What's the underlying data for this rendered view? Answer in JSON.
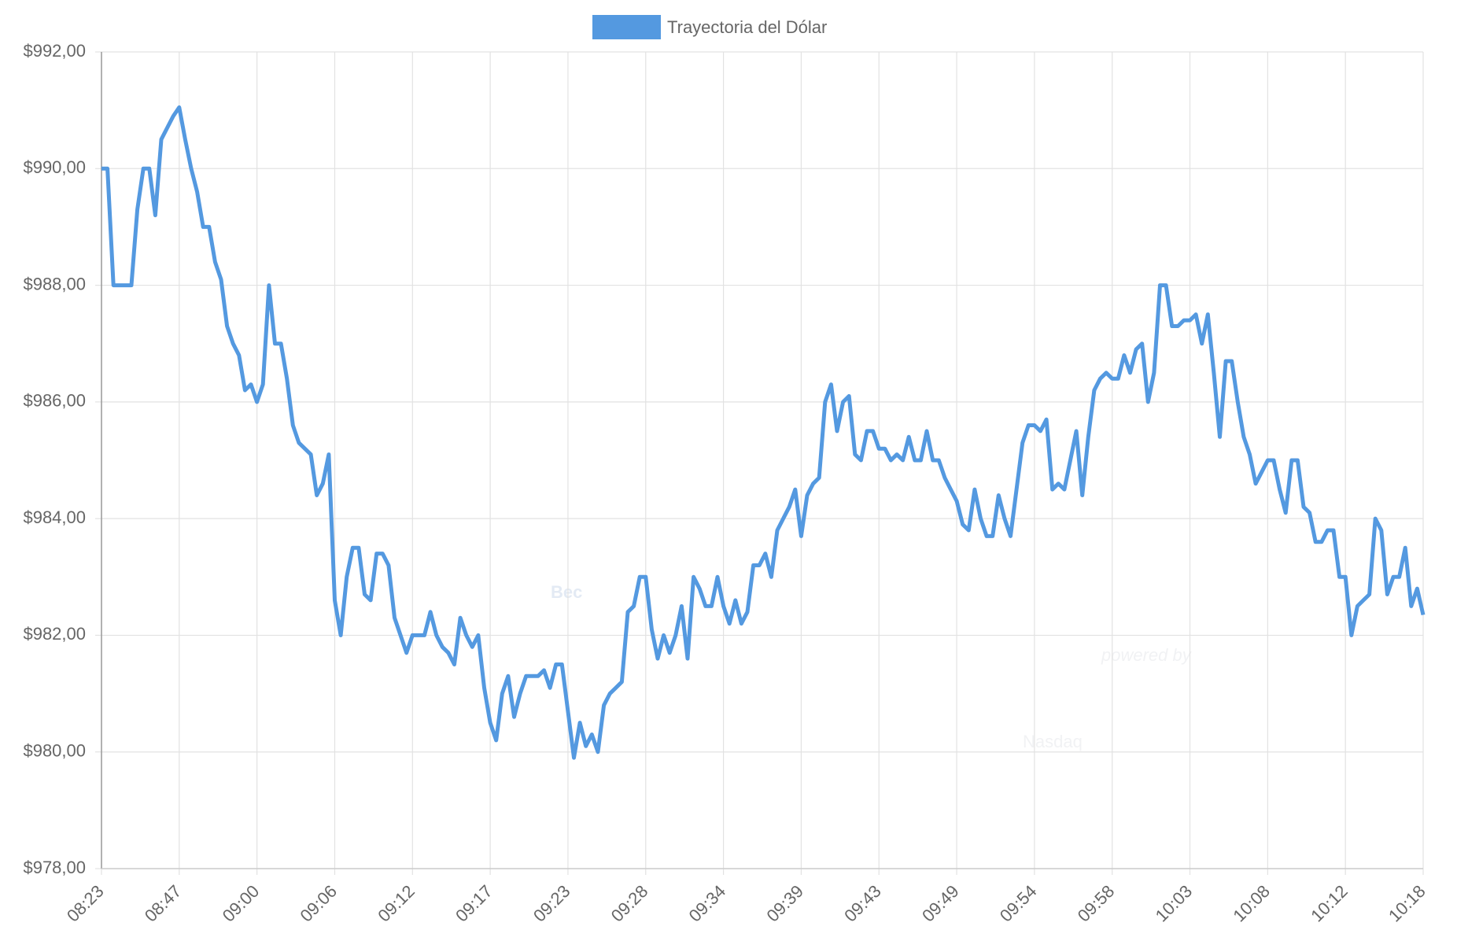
{
  "chart_data": {
    "type": "line",
    "watermark": {
      "brand": "Bec",
      "tagline": "powered by",
      "name": "Nasdaq"
    },
    "categories": [
      "08:23",
      null,
      null,
      null,
      null,
      null,
      null,
      null,
      null,
      null,
      null,
      null,
      null,
      "08:47",
      null,
      null,
      null,
      null,
      null,
      null,
      null,
      null,
      null,
      null,
      null,
      null,
      "09:00",
      null,
      null,
      null,
      null,
      null,
      null,
      null,
      null,
      null,
      null,
      null,
      null,
      "09:06",
      null,
      null,
      null,
      null,
      null,
      null,
      null,
      null,
      null,
      null,
      null,
      null,
      "09:12",
      null,
      null,
      null,
      null,
      null,
      null,
      null,
      null,
      null,
      null,
      null,
      null,
      "09:17",
      null,
      null,
      null,
      null,
      null,
      null,
      null,
      null,
      null,
      null,
      null,
      null,
      "09:23",
      null,
      null,
      null,
      null,
      null,
      null,
      null,
      null,
      null,
      null,
      null,
      null,
      "09:28",
      null,
      null,
      null,
      null,
      null,
      null,
      null,
      null,
      null,
      null,
      null,
      null,
      "09:34",
      null,
      null,
      null,
      null,
      null,
      null,
      null,
      null,
      null,
      null,
      null,
      null,
      "09:39",
      null,
      null,
      null,
      null,
      null,
      null,
      null,
      null,
      null,
      null,
      null,
      null,
      "09:43",
      null,
      null,
      null,
      null,
      null,
      null,
      null,
      null,
      null,
      null,
      null,
      null,
      "09:49",
      null,
      null,
      null,
      null,
      null,
      null,
      null,
      null,
      null,
      null,
      null,
      null,
      "09:54",
      null,
      null,
      null,
      null,
      null,
      null,
      null,
      null,
      null,
      null,
      null,
      null,
      "09:58",
      null,
      null,
      null,
      null,
      null,
      null,
      null,
      null,
      null,
      null,
      null,
      null,
      "10:03",
      null,
      null,
      null,
      null,
      null,
      null,
      null,
      null,
      null,
      null,
      null,
      null,
      "10:08",
      null,
      null,
      null,
      null,
      null,
      null,
      null,
      null,
      null,
      null,
      null,
      null,
      "10:12",
      null,
      null,
      null,
      null,
      null,
      null,
      null,
      null,
      null,
      null,
      null,
      null,
      "10:18"
    ],
    "series": [
      {
        "name": "Trayectoria del Dólar",
        "color": "#5499e0",
        "values": [
          990.0,
          990.0,
          988.0,
          988.0,
          988.0,
          988.0,
          989.3,
          990.0,
          990.0,
          989.2,
          990.5,
          990.7,
          990.9,
          991.05,
          990.5,
          990.0,
          989.6,
          989.0,
          989.0,
          988.4,
          988.1,
          987.3,
          987.0,
          986.8,
          986.2,
          986.3,
          986.0,
          986.3,
          988.0,
          987.0,
          987.0,
          986.4,
          985.6,
          985.3,
          985.2,
          985.1,
          984.4,
          984.6,
          985.1,
          982.6,
          982.0,
          983.0,
          983.5,
          983.5,
          982.7,
          982.6,
          983.4,
          983.4,
          983.2,
          982.3,
          982.0,
          981.7,
          982.0,
          982.0,
          982.0,
          982.4,
          982.0,
          981.8,
          981.7,
          981.5,
          982.3,
          982.0,
          981.8,
          982.0,
          981.1,
          980.5,
          980.2,
          981.0,
          981.3,
          980.6,
          981.0,
          981.3,
          981.3,
          981.3,
          981.4,
          981.1,
          981.5,
          981.5,
          980.7,
          979.9,
          980.5,
          980.1,
          980.3,
          980.0,
          980.8,
          981.0,
          981.1,
          981.2,
          982.4,
          982.5,
          983.0,
          983.0,
          982.1,
          981.6,
          982.0,
          981.7,
          982.0,
          982.5,
          981.6,
          983.0,
          982.8,
          982.5,
          982.5,
          983.0,
          982.5,
          982.2,
          982.6,
          982.2,
          982.4,
          983.2,
          983.2,
          983.4,
          983.0,
          983.8,
          984.0,
          984.2,
          984.5,
          983.7,
          984.4,
          984.6,
          984.7,
          986.0,
          986.3,
          985.5,
          986.0,
          986.1,
          985.1,
          985.0,
          985.5,
          985.5,
          985.2,
          985.2,
          985.0,
          985.1,
          985.0,
          985.4,
          985.0,
          985.0,
          985.5,
          985.0,
          985.0,
          984.7,
          984.5,
          984.3,
          983.9,
          983.8,
          984.5,
          984.0,
          983.7,
          983.7,
          984.4,
          984.0,
          983.7,
          984.5,
          985.3,
          985.6,
          985.6,
          985.5,
          985.7,
          984.5,
          984.6,
          984.5,
          985.0,
          985.5,
          984.4,
          985.4,
          986.2,
          986.4,
          986.5,
          986.4,
          986.4,
          986.8,
          986.5,
          986.9,
          987.0,
          986.0,
          986.5,
          988.0,
          988.0,
          987.3,
          987.3,
          987.4,
          987.4,
          987.5,
          987.0,
          987.5,
          986.5,
          985.4,
          986.7,
          986.7,
          986.0,
          985.4,
          985.1,
          984.6,
          984.8,
          985.0,
          985.0,
          984.5,
          984.1,
          985.0,
          985.0,
          984.2,
          984.1,
          983.6,
          983.6,
          983.8,
          983.8,
          983.0,
          983.0,
          982.0,
          982.5,
          982.6,
          982.7,
          984.0,
          983.8,
          982.7,
          983.0,
          983.0,
          983.5,
          982.5,
          982.8,
          982.35
        ]
      }
    ],
    "ylim": [
      978,
      992
    ],
    "yticks": [
      {
        "value": 978,
        "label": "$978,00"
      },
      {
        "value": 980,
        "label": "$980,00"
      },
      {
        "value": 982,
        "label": "$982,00"
      },
      {
        "value": 984,
        "label": "$984,00"
      },
      {
        "value": 986,
        "label": "$986,00"
      },
      {
        "value": 988,
        "label": "$988,00"
      },
      {
        "value": 990,
        "label": "$990,00"
      },
      {
        "value": 992,
        "label": "$992,00"
      }
    ],
    "grid": true,
    "legend": "top"
  }
}
